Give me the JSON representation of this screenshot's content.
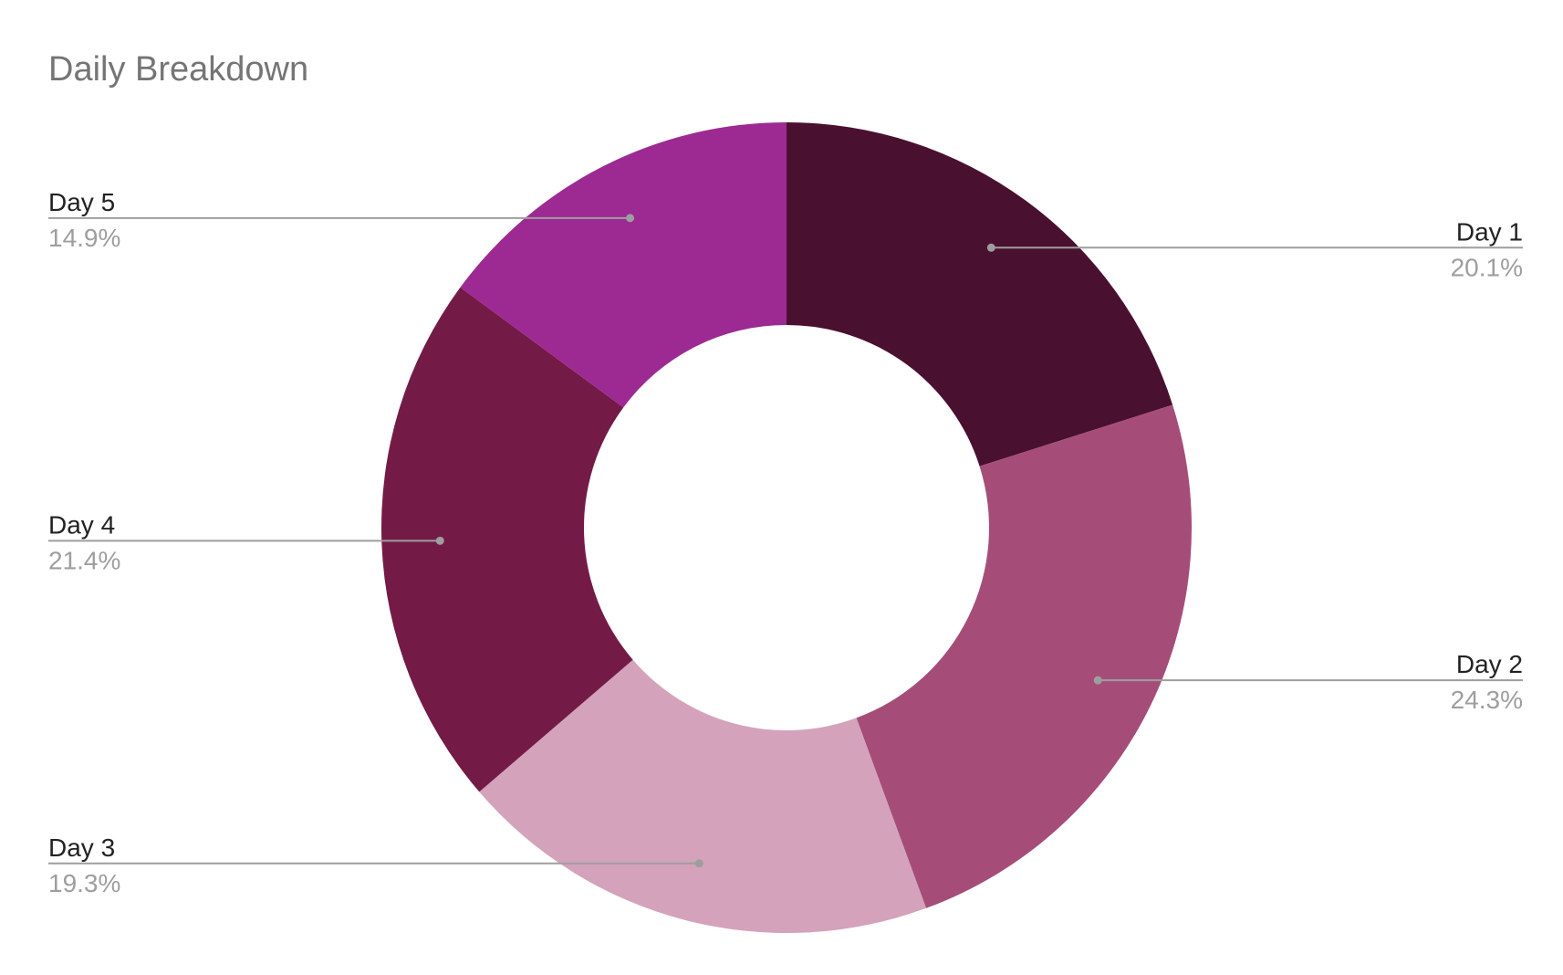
{
  "chart_data": {
    "type": "pie",
    "donut": true,
    "title": "Daily Breakdown",
    "start_angle_deg": 0,
    "direction": "clockwise",
    "slices": [
      {
        "label": "Day 1",
        "value": 20.1,
        "value_label": "20.1%",
        "color": "#4a1030",
        "label_side": "right"
      },
      {
        "label": "Day 2",
        "value": 24.3,
        "value_label": "24.3%",
        "color": "#a54d78",
        "label_side": "right"
      },
      {
        "label": "Day 3",
        "value": 19.3,
        "value_label": "19.3%",
        "color": "#d4a2bb",
        "label_side": "left"
      },
      {
        "label": "Day 4",
        "value": 21.4,
        "value_label": "21.4%",
        "color": "#731b46",
        "label_side": "left"
      },
      {
        "label": "Day 5",
        "value": 14.9,
        "value_label": "14.9%",
        "color": "#9c2a92",
        "label_side": "left"
      }
    ],
    "legend": "none"
  }
}
